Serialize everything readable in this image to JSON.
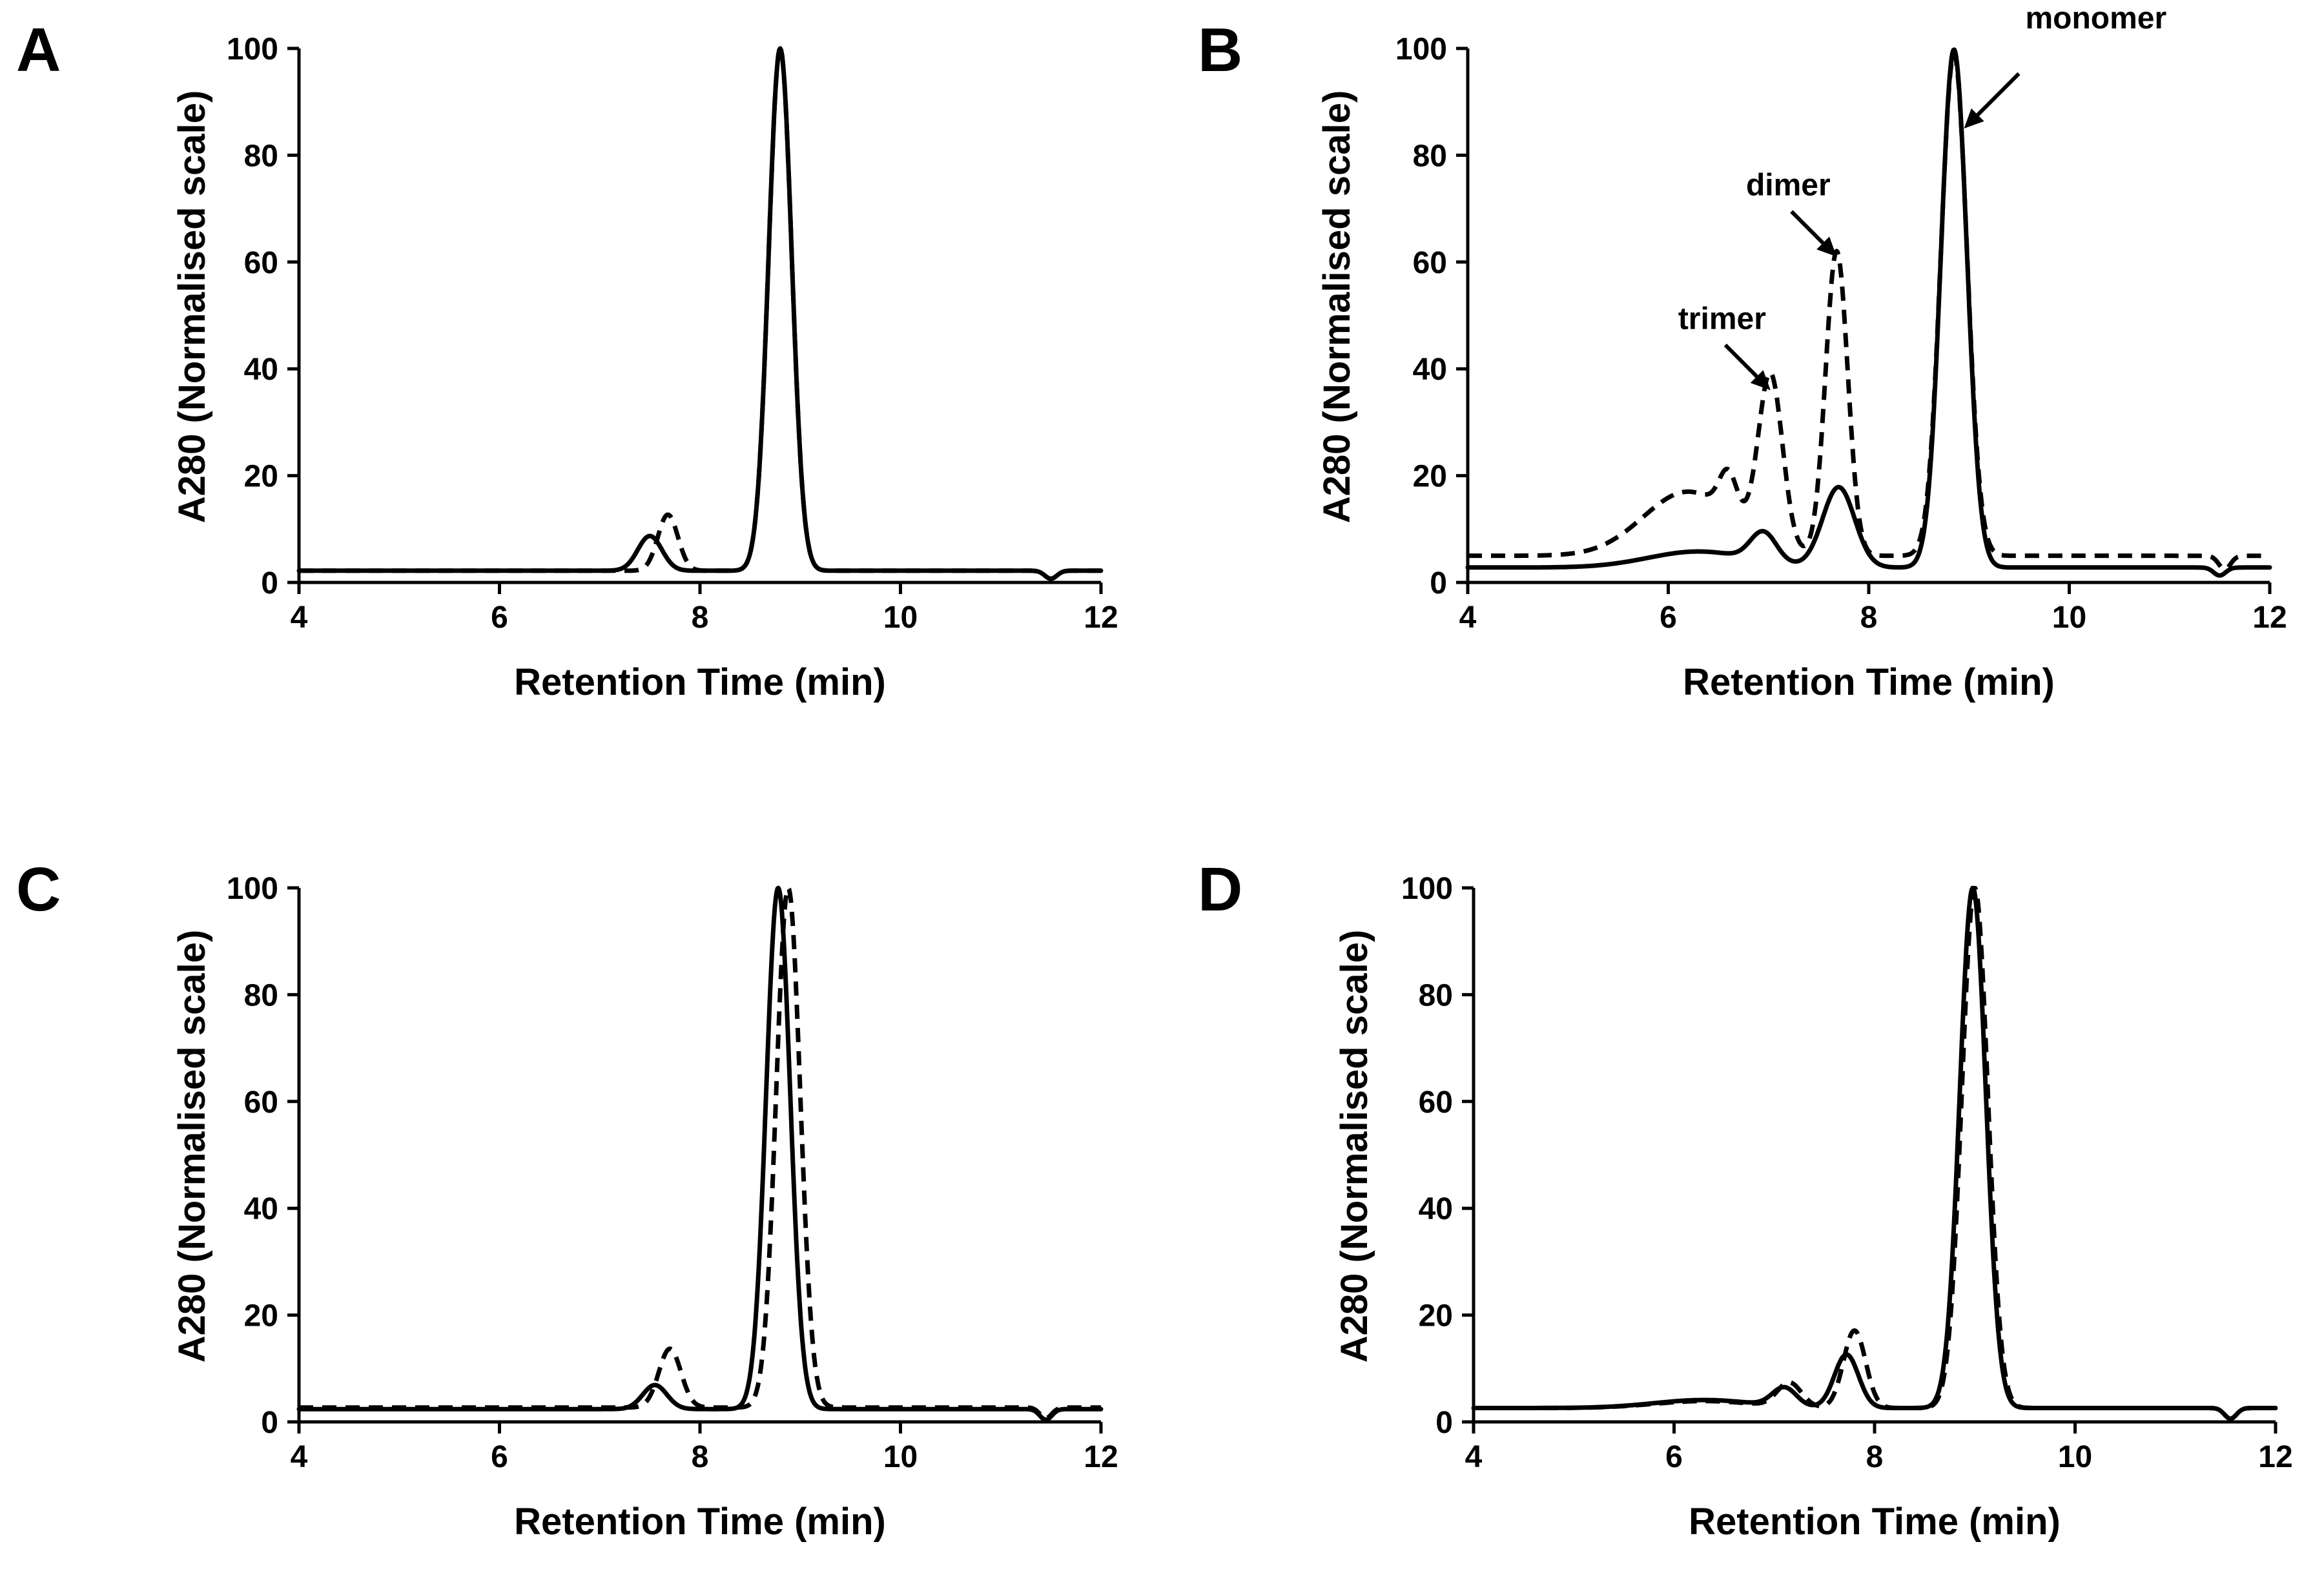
{
  "figure_title": "",
  "chart_data": [
    {
      "panel": "A",
      "type": "line",
      "title": "",
      "xlabel": "Retention Time (min)",
      "ylabel": "A280 (Normalised scale)",
      "xlim": [
        4,
        12
      ],
      "ylim": [
        0,
        100
      ],
      "xticks": [
        4,
        6,
        8,
        10,
        12
      ],
      "yticks": [
        0,
        20,
        40,
        60,
        80,
        100
      ],
      "grid": false,
      "series": [
        {
          "name": "solid",
          "style": "solid",
          "baseline": 2.2,
          "peaks": [
            {
              "center": 7.5,
              "height": 6.5,
              "width": 0.12
            },
            {
              "center": 8.8,
              "height": 97.8,
              "width": 0.115
            }
          ],
          "noise": [
            {
              "center": 11.5,
              "height": -1.5,
              "width": 0.06
            }
          ]
        },
        {
          "name": "dashed",
          "style": "dashed",
          "baseline": 2.2,
          "peaks": [
            {
              "center": 7.68,
              "height": 10.5,
              "width": 0.1
            },
            {
              "center": 8.8,
              "height": 97.8,
              "width": 0.115
            }
          ],
          "noise": [
            {
              "center": 11.5,
              "height": -1.5,
              "width": 0.06
            }
          ]
        }
      ],
      "annotations": []
    },
    {
      "panel": "B",
      "type": "line",
      "title": "",
      "xlabel": "Retention Time (min)",
      "ylabel": "A280 (Normalised scale)",
      "xlim": [
        4,
        12
      ],
      "ylim": [
        0,
        100
      ],
      "xticks": [
        4,
        6,
        8,
        10,
        12
      ],
      "yticks": [
        0,
        20,
        40,
        60,
        80,
        100
      ],
      "grid": false,
      "series": [
        {
          "name": "solid",
          "style": "solid",
          "baseline": 2.8,
          "peaks": [
            {
              "center": 6.3,
              "height": 3.0,
              "width": 0.5
            },
            {
              "center": 6.95,
              "height": 5.5,
              "width": 0.13
            },
            {
              "center": 7.7,
              "height": 15.0,
              "width": 0.16
            },
            {
              "center": 8.85,
              "height": 97.0,
              "width": 0.13
            }
          ],
          "noise": [
            {
              "center": 11.5,
              "height": -1.5,
              "width": 0.06
            }
          ]
        },
        {
          "name": "dashed",
          "style": "dashed",
          "baseline": 5.0,
          "peaks": [
            {
              "center": 6.2,
              "height": 12.0,
              "width": 0.45
            },
            {
              "center": 6.6,
              "height": 8.0,
              "width": 0.09
            },
            {
              "center": 7.02,
              "height": 32.0,
              "width": 0.12
            },
            {
              "center": 7.68,
              "height": 57.0,
              "width": 0.11
            },
            {
              "center": 8.85,
              "height": 94.0,
              "width": 0.13
            }
          ],
          "noise": [
            {
              "center": 11.55,
              "height": -2.5,
              "width": 0.06
            }
          ]
        }
      ],
      "annotations": [
        {
          "text": "trimer",
          "target_x": 7.02,
          "target_y": 36
        },
        {
          "text": "dimer",
          "target_x": 7.68,
          "target_y": 61
        },
        {
          "text": "monomer",
          "target_x": 8.95,
          "target_y": 85
        }
      ]
    },
    {
      "panel": "C",
      "type": "line",
      "title": "",
      "xlabel": "Retention Time (min)",
      "ylabel": "A280 (Normalised scale)",
      "xlim": [
        4,
        12
      ],
      "ylim": [
        0,
        100
      ],
      "xticks": [
        4,
        6,
        8,
        10,
        12
      ],
      "yticks": [
        0,
        20,
        40,
        60,
        80,
        100
      ],
      "grid": false,
      "series": [
        {
          "name": "solid",
          "style": "solid",
          "baseline": 2.4,
          "peaks": [
            {
              "center": 7.55,
              "height": 4.5,
              "width": 0.12
            },
            {
              "center": 8.78,
              "height": 97.6,
              "width": 0.12
            }
          ],
          "noise": [
            {
              "center": 11.45,
              "height": -2.0,
              "width": 0.06
            }
          ]
        },
        {
          "name": "dashed",
          "style": "dashed",
          "baseline": 2.7,
          "peaks": [
            {
              "center": 7.7,
              "height": 11.0,
              "width": 0.11
            },
            {
              "center": 8.88,
              "height": 97.3,
              "width": 0.12
            }
          ],
          "noise": [
            {
              "center": 11.45,
              "height": -2.0,
              "width": 0.06
            }
          ]
        }
      ],
      "annotations": []
    },
    {
      "panel": "D",
      "type": "line",
      "title": "",
      "xlabel": "Retention Time (min)",
      "ylabel": "A280 (Normalised scale)",
      "xlim": [
        4,
        12
      ],
      "ylim": [
        0,
        100
      ],
      "xticks": [
        4,
        6,
        8,
        10,
        12
      ],
      "yticks": [
        0,
        20,
        40,
        60,
        80,
        100
      ],
      "grid": false,
      "series": [
        {
          "name": "solid",
          "style": "solid",
          "baseline": 2.6,
          "peaks": [
            {
              "center": 6.3,
              "height": 1.5,
              "width": 0.5
            },
            {
              "center": 7.1,
              "height": 3.5,
              "width": 0.12
            },
            {
              "center": 7.72,
              "height": 10.0,
              "width": 0.12
            },
            {
              "center": 8.98,
              "height": 97.4,
              "width": 0.13
            }
          ],
          "noise": [
            {
              "center": 11.55,
              "height": -2.0,
              "width": 0.06
            }
          ]
        },
        {
          "name": "dashed",
          "style": "dashed",
          "baseline": 2.6,
          "peaks": [
            {
              "center": 6.3,
              "height": 1.3,
              "width": 0.5
            },
            {
              "center": 7.15,
              "height": 4.5,
              "width": 0.12
            },
            {
              "center": 7.8,
              "height": 14.5,
              "width": 0.11
            },
            {
              "center": 9.0,
              "height": 97.4,
              "width": 0.13
            }
          ],
          "noise": [
            {
              "center": 11.55,
              "height": -2.0,
              "width": 0.06
            }
          ]
        }
      ],
      "annotations": []
    }
  ]
}
